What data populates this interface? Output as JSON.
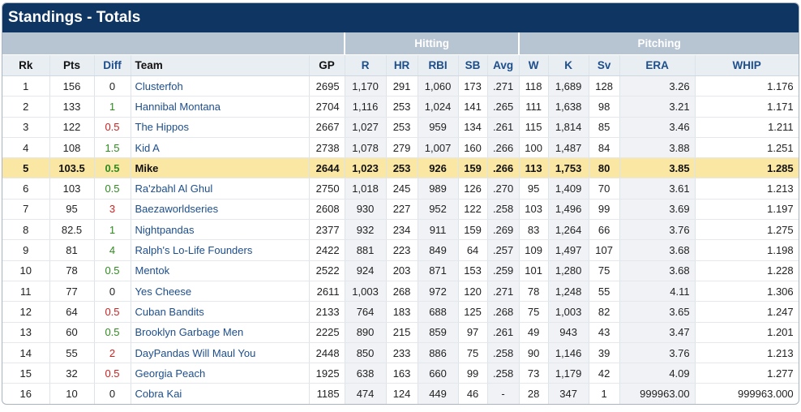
{
  "title": "Standings - Totals",
  "groups": {
    "hitting": "Hitting",
    "pitching": "Pitching"
  },
  "columns": [
    "Rk",
    "Pts",
    "Diff",
    "Team",
    "GP",
    "R",
    "HR",
    "RBI",
    "SB",
    "Avg",
    "W",
    "K",
    "Sv",
    "ERA",
    "WHIP"
  ],
  "rows": [
    {
      "rk": "1",
      "pts": "156",
      "diff": "0",
      "team": "Clusterfoh",
      "gp": "2695",
      "r": "1,170",
      "hr": "291",
      "rbi": "1,060",
      "sb": "173",
      "avg": ".271",
      "w": "118",
      "k": "1,689",
      "sv": "128",
      "era": "3.26",
      "whip": "1.176"
    },
    {
      "rk": "2",
      "pts": "133",
      "diff": "1",
      "team": "Hannibal Montana",
      "gp": "2704",
      "r": "1,116",
      "hr": "253",
      "rbi": "1,024",
      "sb": "141",
      "avg": ".265",
      "w": "111",
      "k": "1,638",
      "sv": "98",
      "era": "3.21",
      "whip": "1.171"
    },
    {
      "rk": "3",
      "pts": "122",
      "diff": "0.5",
      "team": "The Hippos",
      "gp": "2667",
      "r": "1,027",
      "hr": "253",
      "rbi": "959",
      "sb": "134",
      "avg": ".261",
      "w": "115",
      "k": "1,814",
      "sv": "85",
      "era": "3.46",
      "whip": "1.211"
    },
    {
      "rk": "4",
      "pts": "108",
      "diff": "1.5",
      "team": "Kid A",
      "gp": "2738",
      "r": "1,078",
      "hr": "279",
      "rbi": "1,007",
      "sb": "160",
      "avg": ".266",
      "w": "100",
      "k": "1,487",
      "sv": "84",
      "era": "3.88",
      "whip": "1.251"
    },
    {
      "rk": "5",
      "pts": "103.5",
      "diff": "0.5",
      "team": "Mike",
      "gp": "2644",
      "r": "1,023",
      "hr": "253",
      "rbi": "926",
      "sb": "159",
      "avg": ".266",
      "w": "113",
      "k": "1,753",
      "sv": "80",
      "era": "3.85",
      "whip": "1.285"
    },
    {
      "rk": "6",
      "pts": "103",
      "diff": "0.5",
      "team": "Ra'zbahl Al Ghul",
      "gp": "2750",
      "r": "1,018",
      "hr": "245",
      "rbi": "989",
      "sb": "126",
      "avg": ".270",
      "w": "95",
      "k": "1,409",
      "sv": "70",
      "era": "3.61",
      "whip": "1.213"
    },
    {
      "rk": "7",
      "pts": "95",
      "diff": "3",
      "team": "Baezaworldseries",
      "gp": "2608",
      "r": "930",
      "hr": "227",
      "rbi": "952",
      "sb": "122",
      "avg": ".258",
      "w": "103",
      "k": "1,496",
      "sv": "99",
      "era": "3.69",
      "whip": "1.197"
    },
    {
      "rk": "8",
      "pts": "82.5",
      "diff": "1",
      "team": "Nightpandas",
      "gp": "2377",
      "r": "932",
      "hr": "234",
      "rbi": "911",
      "sb": "159",
      "avg": ".269",
      "w": "83",
      "k": "1,264",
      "sv": "66",
      "era": "3.76",
      "whip": "1.275"
    },
    {
      "rk": "9",
      "pts": "81",
      "diff": "4",
      "team": "Ralph's Lo-Life Founders",
      "gp": "2422",
      "r": "881",
      "hr": "223",
      "rbi": "849",
      "sb": "64",
      "avg": ".257",
      "w": "109",
      "k": "1,497",
      "sv": "107",
      "era": "3.68",
      "whip": "1.198"
    },
    {
      "rk": "10",
      "pts": "78",
      "diff": "0.5",
      "team": "Mentok",
      "gp": "2522",
      "r": "924",
      "hr": "203",
      "rbi": "871",
      "sb": "153",
      "avg": ".259",
      "w": "101",
      "k": "1,280",
      "sv": "75",
      "era": "3.68",
      "whip": "1.228"
    },
    {
      "rk": "11",
      "pts": "77",
      "diff": "0",
      "team": "Yes Cheese",
      "gp": "2611",
      "r": "1,003",
      "hr": "268",
      "rbi": "972",
      "sb": "120",
      "avg": ".271",
      "w": "78",
      "k": "1,248",
      "sv": "55",
      "era": "4.11",
      "whip": "1.306"
    },
    {
      "rk": "12",
      "pts": "64",
      "diff": "0.5",
      "team": "Cuban Bandits",
      "gp": "2133",
      "r": "764",
      "hr": "183",
      "rbi": "688",
      "sb": "125",
      "avg": ".268",
      "w": "75",
      "k": "1,003",
      "sv": "82",
      "era": "3.65",
      "whip": "1.247"
    },
    {
      "rk": "13",
      "pts": "60",
      "diff": "0.5",
      "team": "Brooklyn Garbage Men",
      "gp": "2225",
      "r": "890",
      "hr": "215",
      "rbi": "859",
      "sb": "97",
      "avg": ".261",
      "w": "49",
      "k": "943",
      "sv": "43",
      "era": "3.47",
      "whip": "1.201"
    },
    {
      "rk": "14",
      "pts": "55",
      "diff": "2",
      "team": "DayPandas Will Maul You",
      "gp": "2448",
      "r": "850",
      "hr": "233",
      "rbi": "886",
      "sb": "75",
      "avg": ".258",
      "w": "90",
      "k": "1,146",
      "sv": "39",
      "era": "3.76",
      "whip": "1.213"
    },
    {
      "rk": "15",
      "pts": "32",
      "diff": "0.5",
      "team": "Georgia Peach",
      "gp": "1925",
      "r": "638",
      "hr": "163",
      "rbi": "660",
      "sb": "99",
      "avg": ".258",
      "w": "73",
      "k": "1,179",
      "sv": "42",
      "era": "4.09",
      "whip": "1.277"
    },
    {
      "rk": "16",
      "pts": "10",
      "diff": "0",
      "team": "Cobra Kai",
      "gp": "1185",
      "r": "474",
      "hr": "124",
      "rbi": "449",
      "sb": "46",
      "avg": "-",
      "w": "28",
      "k": "347",
      "sv": "1",
      "era": "999963.00",
      "whip": "999963.000"
    }
  ],
  "diff_colors": [
    "diff-0",
    "diff-g",
    "diff-r",
    "diff-g",
    "diff-g",
    "diff-g",
    "diff-r",
    "diff-g",
    "diff-g",
    "diff-g",
    "diff-0",
    "diff-r",
    "diff-g",
    "diff-r",
    "diff-r",
    "diff-0"
  ],
  "highlight_row": 4,
  "colors": {
    "header": "#0f3663",
    "highlight": "#fbe7a4",
    "link": "#1d4e8c",
    "positive": "#2e8b1e",
    "negative": "#cc2222"
  }
}
